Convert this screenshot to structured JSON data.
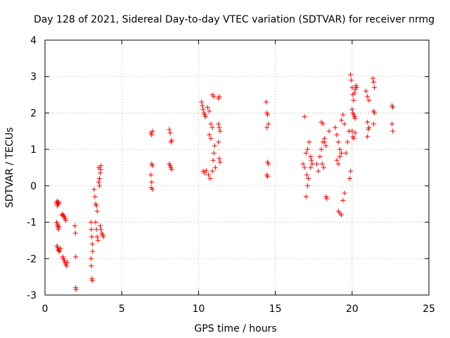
{
  "chart_data": {
    "type": "scatter",
    "title": "Day 128 of 2021, Sidereal Day-to-day VTEC variation (SDTVAR) for receiver nrmg",
    "xlabel": "GPS time / hours",
    "ylabel": "SDTVAR / TECUs",
    "xlim": [
      0,
      25
    ],
    "ylim": [
      -3,
      4
    ],
    "xticks": [
      0,
      5,
      10,
      15,
      20,
      25
    ],
    "yticks": [
      -3,
      -2,
      -1,
      0,
      1,
      2,
      3,
      4
    ],
    "grid": true,
    "marker": "+",
    "color": "#ff0000",
    "series": [
      {
        "name": "SDTVAR",
        "points": [
          [
            0.75,
            -0.45
          ],
          [
            0.78,
            -0.5
          ],
          [
            0.8,
            -0.55
          ],
          [
            0.82,
            -0.42
          ],
          [
            0.85,
            -0.48
          ],
          [
            0.88,
            -0.5
          ],
          [
            0.9,
            -0.46
          ],
          [
            0.76,
            -1.0
          ],
          [
            0.8,
            -1.05
          ],
          [
            0.83,
            -1.1
          ],
          [
            0.86,
            -1.15
          ],
          [
            0.88,
            -1.2
          ],
          [
            0.9,
            -1.12
          ],
          [
            0.78,
            -1.65
          ],
          [
            0.82,
            -1.7
          ],
          [
            0.86,
            -1.75
          ],
          [
            0.9,
            -1.78
          ],
          [
            0.95,
            -1.8
          ],
          [
            1.0,
            -1.72
          ],
          [
            1.1,
            -0.8
          ],
          [
            1.15,
            -0.78
          ],
          [
            1.2,
            -0.82
          ],
          [
            1.25,
            -0.85
          ],
          [
            1.3,
            -0.9
          ],
          [
            1.35,
            -0.95
          ],
          [
            1.15,
            -1.95
          ],
          [
            1.2,
            -2.0
          ],
          [
            1.25,
            -2.05
          ],
          [
            1.3,
            -2.1
          ],
          [
            1.35,
            -2.15
          ],
          [
            1.4,
            -2.2
          ],
          [
            1.45,
            -2.1
          ],
          [
            1.95,
            -1.1
          ],
          [
            1.98,
            -1.3
          ],
          [
            2.0,
            -1.95
          ],
          [
            2.0,
            -2.8
          ],
          [
            2.02,
            -2.85
          ],
          [
            3.0,
            -1.0
          ],
          [
            3.02,
            -1.2
          ],
          [
            3.05,
            -1.4
          ],
          [
            3.08,
            -1.6
          ],
          [
            3.1,
            -1.8
          ],
          [
            3.0,
            -2.0
          ],
          [
            3.02,
            -2.2
          ],
          [
            3.05,
            -2.55
          ],
          [
            3.08,
            -2.6
          ],
          [
            3.2,
            -0.1
          ],
          [
            3.25,
            -0.3
          ],
          [
            3.3,
            -0.5
          ],
          [
            3.35,
            -0.55
          ],
          [
            3.4,
            -0.7
          ],
          [
            3.3,
            -1.0
          ],
          [
            3.35,
            -1.2
          ],
          [
            3.4,
            -1.4
          ],
          [
            3.45,
            -1.5
          ],
          [
            3.5,
            0.1
          ],
          [
            3.55,
            0.2
          ],
          [
            3.6,
            0.35
          ],
          [
            3.62,
            0.45
          ],
          [
            3.65,
            0.55
          ],
          [
            3.5,
            0.5
          ],
          [
            3.55,
            0.0
          ],
          [
            3.6,
            -1.1
          ],
          [
            3.65,
            -1.2
          ],
          [
            3.7,
            -1.3
          ],
          [
            3.75,
            -1.35
          ],
          [
            3.8,
            -1.4
          ],
          [
            6.9,
            1.45
          ],
          [
            6.95,
            1.4
          ],
          [
            7.0,
            1.5
          ],
          [
            6.95,
            0.6
          ],
          [
            7.0,
            0.55
          ],
          [
            6.9,
            0.3
          ],
          [
            6.95,
            0.1
          ],
          [
            7.0,
            -0.1
          ],
          [
            6.92,
            -0.05
          ],
          [
            8.1,
            1.55
          ],
          [
            8.15,
            1.45
          ],
          [
            8.2,
            1.2
          ],
          [
            8.25,
            1.25
          ],
          [
            8.1,
            0.6
          ],
          [
            8.15,
            0.55
          ],
          [
            8.2,
            0.5
          ],
          [
            8.25,
            0.45
          ],
          [
            10.2,
            2.3
          ],
          [
            10.25,
            2.2
          ],
          [
            10.3,
            2.1
          ],
          [
            10.35,
            2.0
          ],
          [
            10.4,
            1.95
          ],
          [
            10.45,
            1.9
          ],
          [
            10.3,
            0.4
          ],
          [
            10.4,
            0.35
          ],
          [
            10.5,
            0.42
          ],
          [
            10.6,
            2.15
          ],
          [
            10.7,
            2.05
          ],
          [
            10.8,
            1.7
          ],
          [
            10.9,
            1.6
          ],
          [
            10.7,
            1.4
          ],
          [
            10.8,
            1.3
          ],
          [
            10.65,
            0.3
          ],
          [
            10.75,
            0.2
          ],
          [
            10.9,
            2.5
          ],
          [
            11.0,
            2.45
          ],
          [
            11.05,
            1.1
          ],
          [
            11.0,
            0.9
          ],
          [
            10.95,
            0.7
          ],
          [
            11.1,
            0.5
          ],
          [
            10.9,
            0.4
          ],
          [
            11.3,
            2.4
          ],
          [
            11.35,
            2.45
          ],
          [
            11.3,
            1.7
          ],
          [
            11.35,
            1.6
          ],
          [
            11.4,
            1.5
          ],
          [
            11.3,
            1.2
          ],
          [
            11.35,
            0.75
          ],
          [
            11.4,
            0.65
          ],
          [
            14.4,
            2.3
          ],
          [
            14.45,
            2.0
          ],
          [
            14.5,
            1.95
          ],
          [
            14.55,
            1.7
          ],
          [
            14.45,
            1.6
          ],
          [
            14.5,
            0.65
          ],
          [
            14.55,
            0.6
          ],
          [
            14.45,
            0.3
          ],
          [
            14.5,
            0.25
          ],
          [
            16.9,
            1.9
          ],
          [
            16.8,
            0.6
          ],
          [
            16.9,
            0.5
          ],
          [
            17.0,
            0.9
          ],
          [
            17.1,
            1.0
          ],
          [
            17.2,
            1.2
          ],
          [
            17.05,
            0.3
          ],
          [
            17.1,
            0.0
          ],
          [
            17.0,
            -0.3
          ],
          [
            17.15,
            0.2
          ],
          [
            17.3,
            0.8
          ],
          [
            17.35,
            0.7
          ],
          [
            17.4,
            0.6
          ],
          [
            17.3,
            0.5
          ],
          [
            17.7,
            0.6
          ],
          [
            17.8,
            0.4
          ],
          [
            17.9,
            0.8
          ],
          [
            18.0,
            1.0
          ],
          [
            18.1,
            1.2
          ],
          [
            18.2,
            1.3
          ],
          [
            18.05,
            0.6
          ],
          [
            18.15,
            0.5
          ],
          [
            18.0,
            1.75
          ],
          [
            18.1,
            1.7
          ],
          [
            18.2,
            1.2
          ],
          [
            18.3,
            1.1
          ],
          [
            18.5,
            1.5
          ],
          [
            18.3,
            -0.3
          ],
          [
            18.35,
            -0.35
          ],
          [
            18.9,
            1.6
          ],
          [
            19.0,
            1.4
          ],
          [
            19.1,
            1.2
          ],
          [
            19.2,
            1.0
          ],
          [
            19.3,
            0.9
          ],
          [
            19.0,
            0.7
          ],
          [
            19.1,
            0.6
          ],
          [
            19.2,
            0.8
          ],
          [
            19.3,
            1.8
          ],
          [
            19.4,
            1.95
          ],
          [
            19.5,
            1.7
          ],
          [
            19.1,
            -0.7
          ],
          [
            19.2,
            -0.75
          ],
          [
            19.3,
            -0.8
          ],
          [
            19.4,
            -0.4
          ],
          [
            19.5,
            -0.2
          ],
          [
            19.6,
            0.9
          ],
          [
            19.7,
            1.2
          ],
          [
            19.8,
            1.5
          ],
          [
            19.9,
            0.4
          ],
          [
            19.85,
            0.2
          ],
          [
            19.9,
            3.05
          ],
          [
            19.95,
            2.9
          ],
          [
            20.0,
            2.7
          ],
          [
            20.05,
            2.5
          ],
          [
            20.1,
            2.35
          ],
          [
            20.15,
            2.55
          ],
          [
            20.2,
            2.65
          ],
          [
            20.25,
            2.75
          ],
          [
            20.3,
            2.7
          ],
          [
            20.0,
            2.1
          ],
          [
            20.05,
            2.0
          ],
          [
            20.1,
            1.95
          ],
          [
            20.15,
            1.9
          ],
          [
            20.2,
            1.85
          ],
          [
            20.0,
            1.5
          ],
          [
            20.05,
            1.35
          ],
          [
            20.1,
            1.3
          ],
          [
            20.2,
            1.45
          ],
          [
            20.9,
            2.6
          ],
          [
            21.0,
            2.45
          ],
          [
            21.1,
            2.35
          ],
          [
            21.0,
            1.75
          ],
          [
            21.05,
            1.55
          ],
          [
            21.1,
            1.6
          ],
          [
            21.0,
            1.35
          ],
          [
            21.35,
            2.95
          ],
          [
            21.4,
            2.85
          ],
          [
            21.45,
            2.7
          ],
          [
            21.4,
            2.05
          ],
          [
            21.45,
            2.0
          ],
          [
            21.4,
            1.7
          ],
          [
            22.6,
            2.2
          ],
          [
            22.65,
            2.15
          ],
          [
            22.6,
            1.7
          ],
          [
            22.65,
            1.5
          ]
        ]
      }
    ]
  }
}
